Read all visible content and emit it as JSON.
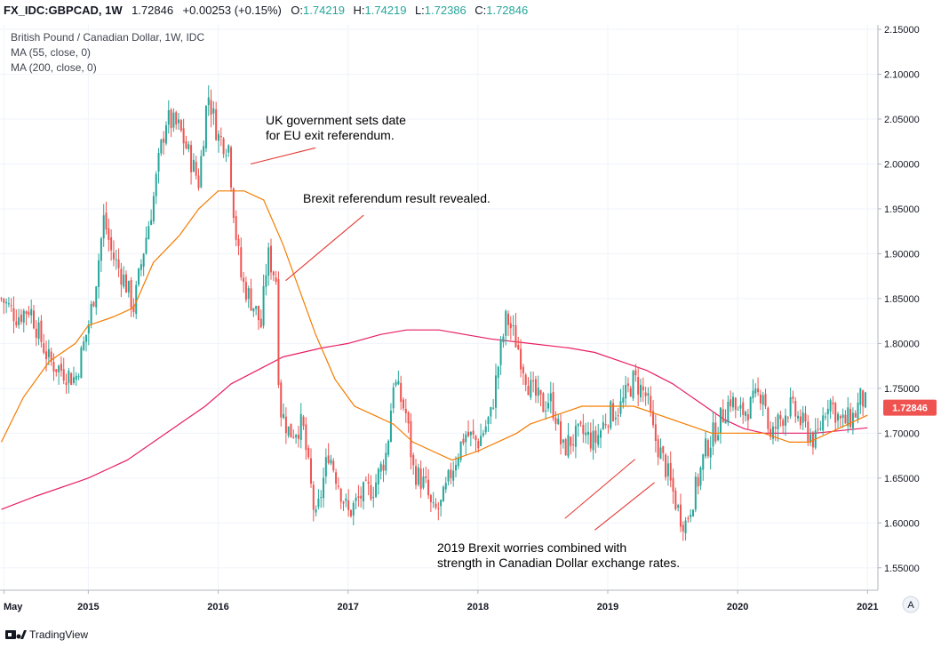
{
  "header": {
    "symbol": "FX_IDC:GBPCAD, 1W",
    "last": "1.72846",
    "change": "+0.00253 (+0.15%)",
    "o_label": "O:",
    "o_value": "1.74219",
    "h_label": "H:",
    "h_value": "1.74219",
    "l_label": "L:",
    "l_value": "1.72386",
    "c_label": "C:",
    "c_value": "1.72846"
  },
  "legend": {
    "title": "British Pound / Canadian Dollar, 1W, IDC",
    "ma1": "MA (55, close, 0)",
    "ma2": "MA (200, close, 0)"
  },
  "price_badge": "1.72846",
  "auto_scale_label": "A",
  "branding": "TradingView",
  "annotations": {
    "a1_line1": "UK government sets date",
    "a1_line2": "for EU exit referendum.",
    "a2": "Brexit referendum result revealed.",
    "a3_line1": "2019 Brexit worries combined with",
    "a3_line2": "strength in Canadian Dollar exchange rates."
  },
  "colors": {
    "up": "#26a69a",
    "down": "#ef5350",
    "ma55": "#f57c00",
    "ma200": "#e91e63",
    "annotation_line": "#e53935",
    "badge": "#ef5350"
  },
  "chart_data": {
    "type": "candlestick",
    "title": "British Pound / Canadian Dollar, 1W, IDC",
    "interval": "1W",
    "x_range": [
      2014.32,
      2021.08
    ],
    "y_range": [
      1.525,
      2.155
    ],
    "y_scale": "linear",
    "grid": true,
    "price_axis": "right",
    "x_ticks": [
      {
        "x": 2014.35,
        "label": "May"
      },
      {
        "x": 2015.0,
        "label": "2015"
      },
      {
        "x": 2016.0,
        "label": "2016"
      },
      {
        "x": 2017.0,
        "label": "2017"
      },
      {
        "x": 2018.0,
        "label": "2018"
      },
      {
        "x": 2019.0,
        "label": "2019"
      },
      {
        "x": 2020.0,
        "label": "2020"
      },
      {
        "x": 2021.0,
        "label": "2021"
      }
    ],
    "y_ticks": [
      {
        "y": 2.15,
        "label": "2.15000"
      },
      {
        "y": 2.1,
        "label": "2.10000"
      },
      {
        "y": 2.05,
        "label": "2.05000"
      },
      {
        "y": 2.0,
        "label": "2.00000"
      },
      {
        "y": 1.95,
        "label": "1.95000"
      },
      {
        "y": 1.9,
        "label": "1.90000"
      },
      {
        "y": 1.85,
        "label": "1.85000"
      },
      {
        "y": 1.8,
        "label": "1.80000"
      },
      {
        "y": 1.75,
        "label": "1.75000"
      },
      {
        "y": 1.7,
        "label": "1.70000"
      },
      {
        "y": 1.65,
        "label": "1.65000"
      },
      {
        "y": 1.6,
        "label": "1.60000"
      },
      {
        "y": 1.55,
        "label": "1.55000"
      }
    ],
    "last_price": 1.72846,
    "close_anchors": [
      [
        2014.33,
        1.85
      ],
      [
        2014.45,
        1.83
      ],
      [
        2014.55,
        1.84
      ],
      [
        2014.62,
        1.81
      ],
      [
        2014.7,
        1.78
      ],
      [
        2014.8,
        1.77
      ],
      [
        2014.9,
        1.76
      ],
      [
        2015.0,
        1.82
      ],
      [
        2015.05,
        1.86
      ],
      [
        2015.12,
        1.94
      ],
      [
        2015.18,
        1.9
      ],
      [
        2015.28,
        1.87
      ],
      [
        2015.35,
        1.84
      ],
      [
        2015.42,
        1.9
      ],
      [
        2015.5,
        1.96
      ],
      [
        2015.55,
        2.01
      ],
      [
        2015.6,
        2.05
      ],
      [
        2015.7,
        2.04
      ],
      [
        2015.8,
        2.0
      ],
      [
        2015.85,
        1.98
      ],
      [
        2015.92,
        2.08
      ],
      [
        2016.0,
        2.03
      ],
      [
        2016.08,
        2.02
      ],
      [
        2016.13,
        1.93
      ],
      [
        2016.18,
        1.87
      ],
      [
        2016.28,
        1.84
      ],
      [
        2016.33,
        1.82
      ],
      [
        2016.38,
        1.9
      ],
      [
        2016.45,
        1.87
      ],
      [
        2016.47,
        1.73
      ],
      [
        2016.55,
        1.7
      ],
      [
        2016.65,
        1.71
      ],
      [
        2016.75,
        1.6
      ],
      [
        2016.85,
        1.68
      ],
      [
        2017.0,
        1.61
      ],
      [
        2017.1,
        1.63
      ],
      [
        2017.2,
        1.64
      ],
      [
        2017.3,
        1.68
      ],
      [
        2017.35,
        1.76
      ],
      [
        2017.4,
        1.74
      ],
      [
        2017.45,
        1.72
      ],
      [
        2017.5,
        1.66
      ],
      [
        2017.6,
        1.64
      ],
      [
        2017.65,
        1.61
      ],
      [
        2017.72,
        1.62
      ],
      [
        2017.8,
        1.66
      ],
      [
        2017.9,
        1.7
      ],
      [
        2018.0,
        1.69
      ],
      [
        2018.1,
        1.72
      ],
      [
        2018.15,
        1.77
      ],
      [
        2018.22,
        1.83
      ],
      [
        2018.3,
        1.8
      ],
      [
        2018.4,
        1.75
      ],
      [
        2018.5,
        1.73
      ],
      [
        2018.55,
        1.74
      ],
      [
        2018.6,
        1.72
      ],
      [
        2018.65,
        1.68
      ],
      [
        2018.7,
        1.69
      ],
      [
        2018.8,
        1.7
      ],
      [
        2018.9,
        1.69
      ],
      [
        2019.0,
        1.72
      ],
      [
        2019.1,
        1.73
      ],
      [
        2019.2,
        1.76
      ],
      [
        2019.3,
        1.74
      ],
      [
        2019.35,
        1.7
      ],
      [
        2019.45,
        1.66
      ],
      [
        2019.55,
        1.61
      ],
      [
        2019.6,
        1.6
      ],
      [
        2019.7,
        1.65
      ],
      [
        2019.75,
        1.68
      ],
      [
        2019.85,
        1.71
      ],
      [
        2019.95,
        1.74
      ],
      [
        2020.0,
        1.72
      ],
      [
        2020.1,
        1.73
      ],
      [
        2020.2,
        1.75
      ],
      [
        2020.25,
        1.69
      ],
      [
        2020.3,
        1.71
      ],
      [
        2020.4,
        1.73
      ],
      [
        2020.5,
        1.71
      ],
      [
        2020.55,
        1.7
      ],
      [
        2020.6,
        1.69
      ],
      [
        2020.7,
        1.74
      ],
      [
        2020.8,
        1.71
      ],
      [
        2020.9,
        1.72
      ],
      [
        2020.95,
        1.74
      ],
      [
        2021.0,
        1.72846
      ]
    ],
    "series": [
      {
        "name": "MA (55, close, 0)",
        "points": [
          [
            2014.33,
            1.69
          ],
          [
            2014.5,
            1.74
          ],
          [
            2014.7,
            1.78
          ],
          [
            2014.9,
            1.8
          ],
          [
            2015.0,
            1.82
          ],
          [
            2015.2,
            1.83
          ],
          [
            2015.35,
            1.84
          ],
          [
            2015.5,
            1.89
          ],
          [
            2015.7,
            1.92
          ],
          [
            2015.85,
            1.95
          ],
          [
            2016.0,
            1.97
          ],
          [
            2016.2,
            1.97
          ],
          [
            2016.35,
            1.96
          ],
          [
            2016.5,
            1.91
          ],
          [
            2016.75,
            1.81
          ],
          [
            2016.9,
            1.76
          ],
          [
            2017.05,
            1.73
          ],
          [
            2017.2,
            1.72
          ],
          [
            2017.35,
            1.71
          ],
          [
            2017.5,
            1.69
          ],
          [
            2017.65,
            1.68
          ],
          [
            2017.8,
            1.67
          ],
          [
            2018.0,
            1.68
          ],
          [
            2018.15,
            1.69
          ],
          [
            2018.3,
            1.7
          ],
          [
            2018.4,
            1.71
          ],
          [
            2018.6,
            1.72
          ],
          [
            2018.8,
            1.73
          ],
          [
            2019.0,
            1.73
          ],
          [
            2019.2,
            1.73
          ],
          [
            2019.4,
            1.72
          ],
          [
            2019.6,
            1.71
          ],
          [
            2019.8,
            1.7
          ],
          [
            2020.0,
            1.7
          ],
          [
            2020.2,
            1.7
          ],
          [
            2020.4,
            1.69
          ],
          [
            2020.55,
            1.69
          ],
          [
            2020.7,
            1.7
          ],
          [
            2020.85,
            1.71
          ],
          [
            2021.0,
            1.72
          ]
        ]
      },
      {
        "name": "MA (200, close, 0)",
        "points": [
          [
            2014.33,
            1.615
          ],
          [
            2014.6,
            1.63
          ],
          [
            2014.9,
            1.645
          ],
          [
            2015.0,
            1.65
          ],
          [
            2015.3,
            1.67
          ],
          [
            2015.6,
            1.7
          ],
          [
            2015.9,
            1.73
          ],
          [
            2016.1,
            1.755
          ],
          [
            2016.3,
            1.77
          ],
          [
            2016.5,
            1.785
          ],
          [
            2016.8,
            1.795
          ],
          [
            2017.0,
            1.8
          ],
          [
            2017.25,
            1.81
          ],
          [
            2017.45,
            1.815
          ],
          [
            2017.7,
            1.815
          ],
          [
            2017.9,
            1.81
          ],
          [
            2018.1,
            1.805
          ],
          [
            2018.4,
            1.8
          ],
          [
            2018.7,
            1.795
          ],
          [
            2018.9,
            1.79
          ],
          [
            2019.1,
            1.78
          ],
          [
            2019.3,
            1.77
          ],
          [
            2019.5,
            1.755
          ],
          [
            2019.7,
            1.735
          ],
          [
            2019.9,
            1.715
          ],
          [
            2020.05,
            1.705
          ],
          [
            2020.2,
            1.7
          ],
          [
            2020.4,
            1.7
          ],
          [
            2020.6,
            1.7
          ],
          [
            2020.8,
            1.703
          ],
          [
            2021.0,
            1.706
          ]
        ]
      }
    ],
    "annotations": [
      {
        "text": "UK government sets date for EU exit referendum.",
        "from": [
          2016.25,
          2.0
        ],
        "to": [
          2016.75,
          2.018
        ]
      },
      {
        "text": "Brexit referendum result revealed.",
        "from": [
          2016.52,
          1.87
        ],
        "to": [
          2017.12,
          1.943
        ]
      },
      {
        "text": "2019 Brexit worries combined with strength in Canadian Dollar exchange rates.",
        "from": [
          2018.67,
          1.605
        ],
        "to": [
          2019.21,
          1.671
        ]
      },
      {
        "text": "2019 Brexit worries combined with strength in Canadian Dollar exchange rates.",
        "from": [
          2018.9,
          1.592
        ],
        "to": [
          2019.36,
          1.645
        ]
      }
    ]
  }
}
